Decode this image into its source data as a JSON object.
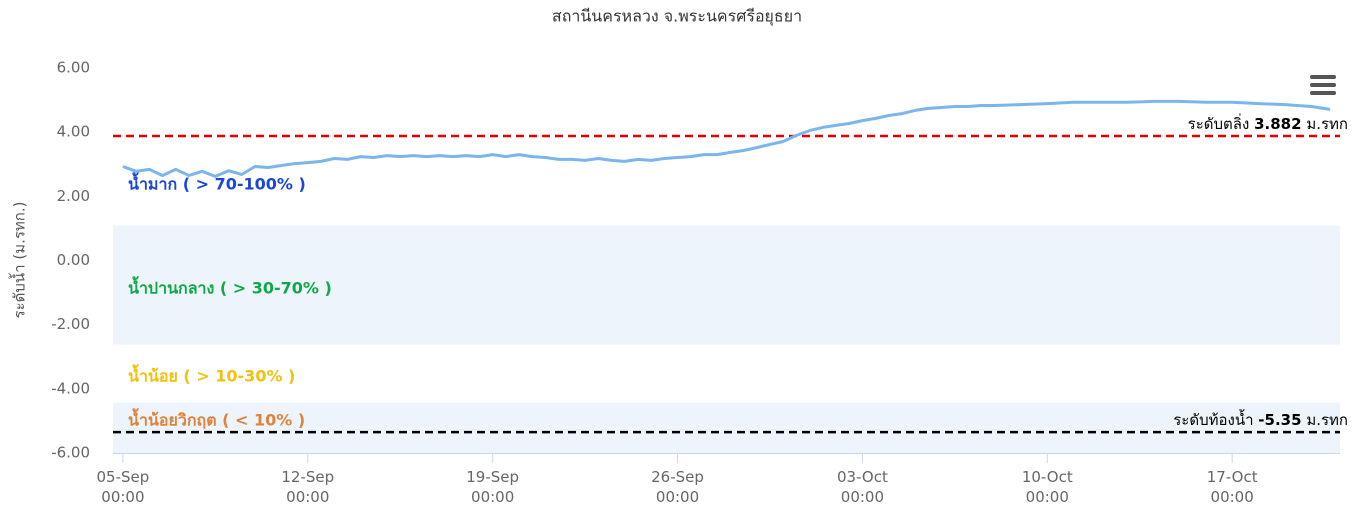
{
  "chart_data": {
    "type": "line",
    "title": "สถานีนครหลวง จ.พระนครศรีอยุธยา",
    "y_label": "ระดับน้ำ (ม.รทก.)",
    "x": [
      "09-05 00:00",
      "09-05 12:00",
      "09-06 00:00",
      "09-06 12:00",
      "09-07 00:00",
      "09-07 12:00",
      "09-08 00:00",
      "09-08 12:00",
      "09-09 00:00",
      "09-09 12:00",
      "09-10 00:00",
      "09-10 12:00",
      "09-11 00:00",
      "09-11 12:00",
      "09-12 00:00",
      "09-12 12:00",
      "09-13 00:00",
      "09-13 12:00",
      "09-14 00:00",
      "09-14 12:00",
      "09-15 00:00",
      "09-15 12:00",
      "09-16 00:00",
      "09-16 12:00",
      "09-17 00:00",
      "09-17 12:00",
      "09-18 00:00",
      "09-18 12:00",
      "09-19 00:00",
      "09-19 12:00",
      "09-20 00:00",
      "09-20 12:00",
      "09-21 00:00",
      "09-21 12:00",
      "09-22 00:00",
      "09-22 12:00",
      "09-23 00:00",
      "09-23 12:00",
      "09-24 00:00",
      "09-24 12:00",
      "09-25 00:00",
      "09-25 12:00",
      "09-26 00:00",
      "09-26 12:00",
      "09-27 00:00",
      "09-27 12:00",
      "09-28 00:00",
      "09-28 12:00",
      "09-29 00:00",
      "09-29 12:00",
      "09-30 00:00",
      "09-30 12:00",
      "10-01 00:00",
      "10-01 12:00",
      "10-02 00:00",
      "10-02 12:00",
      "10-03 00:00",
      "10-03 12:00",
      "10-04 00:00",
      "10-04 12:00",
      "10-05 00:00",
      "10-05 12:00",
      "10-06 00:00",
      "10-06 12:00",
      "10-07 00:00",
      "10-07 12:00",
      "10-08 00:00",
      "10-09 00:00",
      "10-10 00:00",
      "10-11 00:00",
      "10-12 00:00",
      "10-13 00:00",
      "10-14 00:00",
      "10-15 00:00",
      "10-16 00:00",
      "10-17 00:00",
      "10-18 00:00",
      "10-19 00:00",
      "10-20 00:00",
      "10-20 17:00"
    ],
    "series": [
      {
        "name": "ระดับน้ำ",
        "color": "#7cb5ec",
        "values": [
          2.93,
          2.78,
          2.84,
          2.65,
          2.84,
          2.65,
          2.78,
          2.62,
          2.8,
          2.68,
          2.93,
          2.9,
          2.96,
          3.02,
          3.05,
          3.09,
          3.18,
          3.15,
          3.24,
          3.21,
          3.27,
          3.24,
          3.27,
          3.24,
          3.27,
          3.24,
          3.27,
          3.24,
          3.3,
          3.24,
          3.3,
          3.24,
          3.21,
          3.15,
          3.15,
          3.12,
          3.18,
          3.12,
          3.09,
          3.15,
          3.12,
          3.18,
          3.21,
          3.24,
          3.3,
          3.3,
          3.37,
          3.43,
          3.52,
          3.62,
          3.71,
          3.9,
          4.05,
          4.15,
          4.21,
          4.27,
          4.36,
          4.43,
          4.52,
          4.58,
          4.68,
          4.74,
          4.77,
          4.8,
          4.8,
          4.83,
          4.83,
          4.86,
          4.89,
          4.93,
          4.93,
          4.93,
          4.96,
          4.96,
          4.93,
          4.93,
          4.89,
          4.86,
          4.8,
          4.71
        ]
      }
    ],
    "xlim": [
      "09-04 15:00",
      "10-21 02:00"
    ],
    "xticks": [
      {
        "value": "09-05 00:00",
        "label": "05-Sep 00:00"
      },
      {
        "value": "09-12 00:00",
        "label": "12-Sep 00:00"
      },
      {
        "value": "09-19 00:00",
        "label": "19-Sep 00:00"
      },
      {
        "value": "09-26 00:00",
        "label": "26-Sep 00:00"
      },
      {
        "value": "10-03 00:00",
        "label": "03-Oct 00:00"
      },
      {
        "value": "10-10 00:00",
        "label": "10-Oct 00:00"
      },
      {
        "value": "10-17 00:00",
        "label": "17-Oct 00:00"
      }
    ],
    "ylim": [
      -6,
      6
    ],
    "yticks": [
      {
        "value": 6,
        "label": "6.00"
      },
      {
        "value": 4,
        "label": "4.00"
      },
      {
        "value": 2,
        "label": "2.00"
      },
      {
        "value": 0,
        "label": "0.00"
      },
      {
        "value": -2,
        "label": "-2.00"
      },
      {
        "value": -4,
        "label": "-4.00"
      },
      {
        "value": -6,
        "label": "-6.00"
      }
    ],
    "bands": [
      {
        "from": -2.62,
        "to": 1.09,
        "color": "#edf4fb"
      },
      {
        "from": -6,
        "to": -4.43,
        "color": "#edf4fb"
      }
    ],
    "zones": [
      {
        "text": "น้ำมาก ( > 70-100% )",
        "color": "#1a47d6"
      },
      {
        "text": "น้ำปานกลาง ( > 30-70% )",
        "color": "#10a84a"
      },
      {
        "text": "น้ำน้อย ( > 10-30% )",
        "color": "#f2c10d"
      },
      {
        "text": "น้ำน้อยวิกฤต ( < 10% )",
        "color": "#e0833a"
      }
    ],
    "plot_lines": [
      {
        "value": 3.882,
        "color": "#e00000",
        "text": "ระดับตลิ่ง",
        "unit": "ม.รทก"
      },
      {
        "value": -5.35,
        "color": "#000000",
        "text": "ระดับท้องน้ำ",
        "unit": "ม.รทก"
      }
    ]
  }
}
